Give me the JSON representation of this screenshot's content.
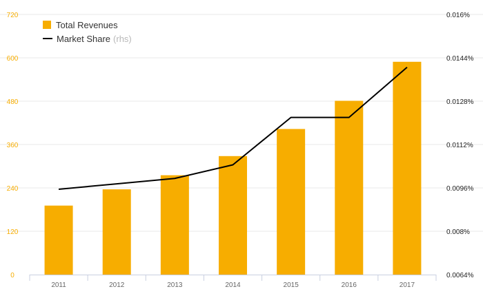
{
  "chart_data": {
    "type": "bar",
    "categories": [
      "2011",
      "2012",
      "2013",
      "2014",
      "2015",
      "2016",
      "2017"
    ],
    "series": [
      {
        "name": "Total Revenues",
        "type": "bar",
        "axis": "left",
        "values": [
          191,
          236,
          275,
          328,
          403,
          481,
          589
        ]
      },
      {
        "name": "Market Share",
        "type": "line",
        "axis": "right",
        "values": [
          0.00955,
          0.00975,
          0.00995,
          0.01045,
          0.0122,
          0.0122,
          0.01405
        ]
      }
    ],
    "legend": {
      "bar_label": "Total Revenues",
      "line_label": "Market Share",
      "line_suffix": "(rhs)",
      "placement": "top-left"
    },
    "y_left": {
      "min": 0,
      "max": 720,
      "ticks": [
        "0",
        "120",
        "240",
        "360",
        "480",
        "600",
        "720"
      ],
      "values": [
        0,
        120,
        240,
        360,
        480,
        600,
        720
      ]
    },
    "y_right": {
      "min": 0.0064,
      "max": 0.016,
      "ticks": [
        "0.0064%",
        "0.008%",
        "0.0096%",
        "0.0112%",
        "0.0128%",
        "0.0144%",
        "0.016%"
      ],
      "values": [
        0.0064,
        0.008,
        0.0096,
        0.0112,
        0.0128,
        0.0144,
        0.016
      ]
    },
    "grid": true,
    "colors": {
      "bar": "#f7ad00",
      "line": "#000000",
      "left_axis_text": "#f7ad00",
      "right_axis_text": "#222222",
      "grid": "#e8e8e8",
      "axis": "#c8cfe0",
      "x_text": "#666666"
    }
  }
}
